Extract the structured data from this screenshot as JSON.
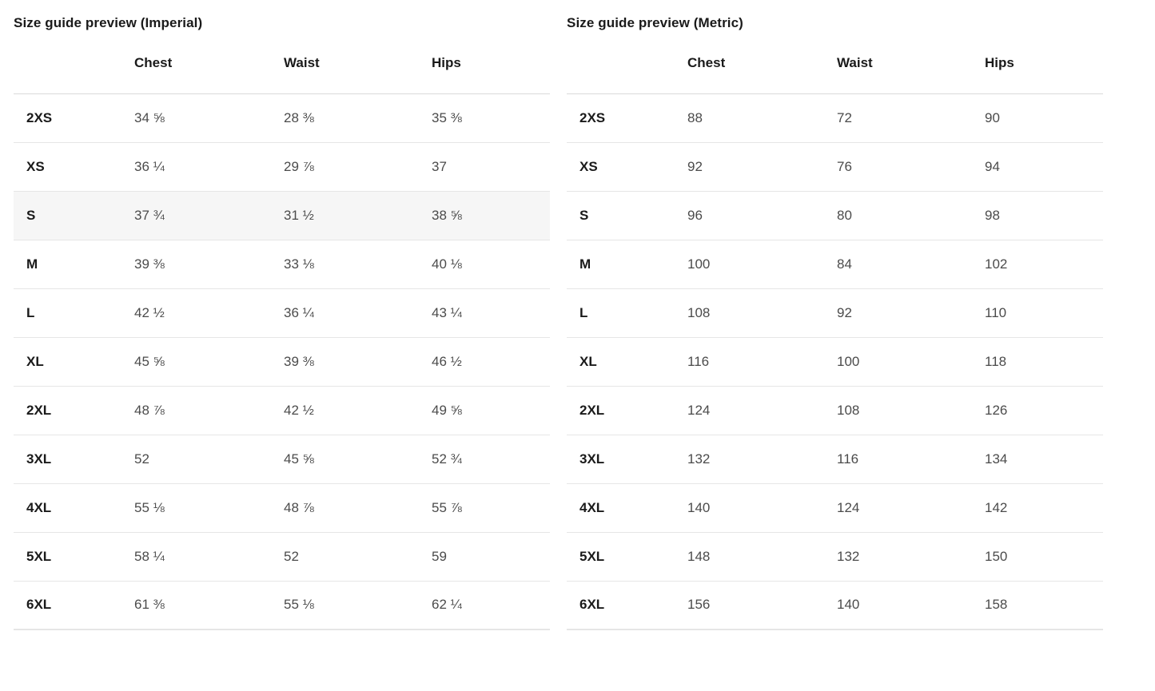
{
  "colors": {
    "heading_text": "#1a1a1a",
    "value_text": "#4b4b4b",
    "row_border": "#e6e6e6",
    "header_border": "#d9d9d9",
    "highlight_row_bg": "#f6f6f6"
  },
  "tables": [
    {
      "title": "Size guide preview (Imperial)",
      "unit_system": "Imperial",
      "columns": [
        "Chest",
        "Waist",
        "Hips"
      ],
      "highlight_row_index": 2,
      "rows": [
        [
          "2XS",
          "34 ⅝",
          "28 ⅜",
          "35 ⅜"
        ],
        [
          "XS",
          "36 ¼",
          "29 ⅞",
          "37"
        ],
        [
          "S",
          "37 ¾",
          "31 ½",
          "38 ⅝"
        ],
        [
          "M",
          "39 ⅜",
          "33 ⅛",
          "40 ⅛"
        ],
        [
          "L",
          "42 ½",
          "36 ¼",
          "43 ¼"
        ],
        [
          "XL",
          "45 ⅝",
          "39 ⅜",
          "46 ½"
        ],
        [
          "2XL",
          "48 ⅞",
          "42 ½",
          "49 ⅝"
        ],
        [
          "3XL",
          "52",
          "45 ⅝",
          "52 ¾"
        ],
        [
          "4XL",
          "55 ⅛",
          "48 ⅞",
          "55 ⅞"
        ],
        [
          "5XL",
          "58 ¼",
          "52",
          "59"
        ],
        [
          "6XL",
          "61 ⅜",
          "55 ⅛",
          "62 ¼"
        ]
      ]
    },
    {
      "title": "Size guide preview (Metric)",
      "unit_system": "Metric",
      "columns": [
        "Chest",
        "Waist",
        "Hips"
      ],
      "highlight_row_index": null,
      "rows": [
        [
          "2XS",
          "88",
          "72",
          "90"
        ],
        [
          "XS",
          "92",
          "76",
          "94"
        ],
        [
          "S",
          "96",
          "80",
          "98"
        ],
        [
          "M",
          "100",
          "84",
          "102"
        ],
        [
          "L",
          "108",
          "92",
          "110"
        ],
        [
          "XL",
          "116",
          "100",
          "118"
        ],
        [
          "2XL",
          "124",
          "108",
          "126"
        ],
        [
          "3XL",
          "132",
          "116",
          "134"
        ],
        [
          "4XL",
          "140",
          "124",
          "142"
        ],
        [
          "5XL",
          "148",
          "132",
          "150"
        ],
        [
          "6XL",
          "156",
          "140",
          "158"
        ]
      ]
    }
  ]
}
